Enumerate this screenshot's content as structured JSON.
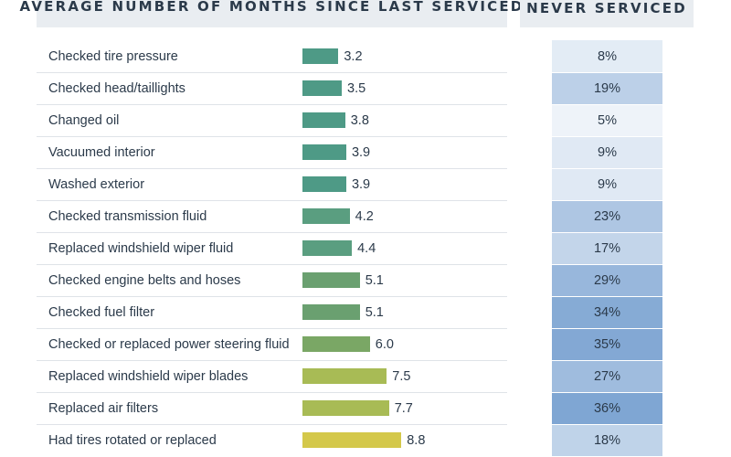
{
  "header": {
    "left_title": "AVERAGE NUMBER OF MONTHS SINCE LAST SERVICED",
    "right_title": "NEVER SERVICED"
  },
  "chart_data": {
    "type": "bar",
    "orientation": "horizontal",
    "categories": [
      "Checked tire pressure",
      "Checked head/taillights",
      "Changed oil",
      "Vacuumed interior",
      "Washed exterior",
      "Checked transmission fluid",
      "Replaced windshield wiper fluid",
      "Checked engine belts and hoses",
      "Checked fuel filter",
      "Checked or replaced power steering fluid",
      "Replaced windshield wiper blades",
      "Replaced air filters",
      "Had tires rotated or replaced"
    ],
    "values": [
      3.2,
      3.5,
      3.8,
      3.9,
      3.9,
      4.2,
      4.4,
      5.1,
      5.1,
      6.0,
      7.5,
      7.7,
      8.8
    ],
    "value_labels": [
      "3.2",
      "3.5",
      "3.8",
      "3.9",
      "3.9",
      "4.2",
      "4.4",
      "5.1",
      "5.1",
      "6.0",
      "7.5",
      "7.7",
      "8.8"
    ],
    "never_serviced": [
      "8%",
      "19%",
      "5%",
      "9%",
      "9%",
      "23%",
      "17%",
      "29%",
      "34%",
      "35%",
      "27%",
      "36%",
      "18%"
    ],
    "never_serviced_values": [
      8,
      19,
      5,
      9,
      9,
      23,
      17,
      29,
      34,
      35,
      27,
      36,
      18
    ],
    "bar_colors": [
      "#4e9a86",
      "#4e9a86",
      "#4e9a86",
      "#4e9a86",
      "#4e9a86",
      "#5a9e80",
      "#5a9e80",
      "#6aa070",
      "#6aa070",
      "#7aa765",
      "#a8bb55",
      "#a8bb55",
      "#d4c84a"
    ],
    "cell_color_low": "#eef3f9",
    "cell_color_high": "#7fa6d3"
  }
}
